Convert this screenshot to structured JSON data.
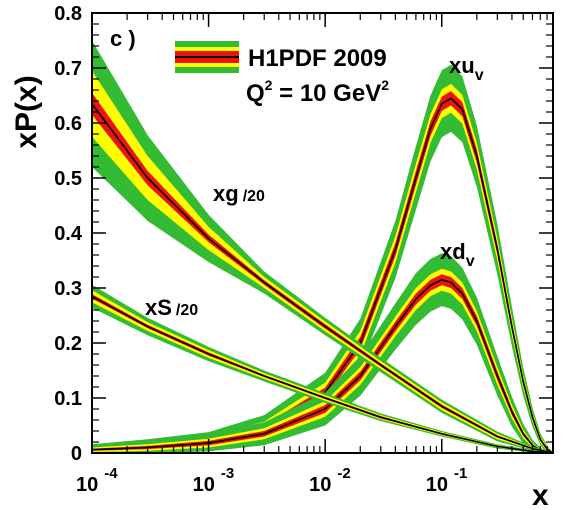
{
  "chart_data": {
    "type": "line",
    "panel_label": "c )",
    "legend": {
      "title": "H1PDF 2009",
      "scale_prefix": "Q",
      "scale_exp": "2",
      "scale_rest": " = 10 GeV",
      "scale_unit_exp": "2",
      "placement": "top-center"
    },
    "xlabel": "x",
    "ylabel": "xP(x)",
    "x_scale": "log",
    "xlim": [
      0.0001,
      0.9
    ],
    "ylim": [
      0,
      0.8
    ],
    "y_ticks": [
      "0",
      "0.1",
      "0.2",
      "0.3",
      "0.4",
      "0.5",
      "0.6",
      "0.7",
      "0.8"
    ],
    "x_ticks": [
      {
        "base": "10",
        "exp": "-4"
      },
      {
        "base": "10",
        "exp": "-3"
      },
      {
        "base": "10",
        "exp": "-2"
      },
      {
        "base": "10",
        "exp": "-1"
      }
    ],
    "band_colors": {
      "outer": "#33bb33",
      "middle": "#ffff00",
      "inner": "#ee1111",
      "central": "#000000"
    },
    "series": [
      {
        "id": "xuv",
        "label_main": "xu",
        "label_sub": "v",
        "x": [
          0.0001,
          0.0003,
          0.001,
          0.003,
          0.01,
          0.02,
          0.04,
          0.06,
          0.08,
          0.1,
          0.12,
          0.15,
          0.2,
          0.3,
          0.4,
          0.5,
          0.6,
          0.7,
          0.8,
          0.9
        ],
        "y": [
          0.008,
          0.013,
          0.022,
          0.045,
          0.11,
          0.2,
          0.37,
          0.5,
          0.59,
          0.635,
          0.645,
          0.625,
          0.54,
          0.37,
          0.23,
          0.13,
          0.065,
          0.025,
          0.007,
          0.0
        ],
        "outer": [
          0.004,
          0.006,
          0.008,
          0.012,
          0.018,
          0.022,
          0.028,
          0.032,
          0.034,
          0.035,
          0.035,
          0.034,
          0.032,
          0.026,
          0.02,
          0.014,
          0.009,
          0.005,
          0.003,
          0.0
        ],
        "middle": [
          0.002,
          0.003,
          0.004,
          0.006,
          0.009,
          0.011,
          0.012,
          0.013,
          0.013,
          0.013,
          0.013,
          0.013,
          0.012,
          0.01,
          0.008,
          0.006,
          0.004,
          0.003,
          0.002,
          0.0
        ],
        "inner": [
          0.002,
          0.003,
          0.004,
          0.006,
          0.009,
          0.011,
          0.012,
          0.013,
          0.013,
          0.013,
          0.013,
          0.013,
          0.012,
          0.01,
          0.008,
          0.006,
          0.004,
          0.003,
          0.002,
          0.0
        ]
      },
      {
        "id": "xdv",
        "label_main": "xd",
        "label_sub": "v",
        "x": [
          0.0001,
          0.0003,
          0.001,
          0.003,
          0.01,
          0.02,
          0.04,
          0.06,
          0.08,
          0.1,
          0.12,
          0.15,
          0.2,
          0.3,
          0.4,
          0.5,
          0.6,
          0.7,
          0.8,
          0.9
        ],
        "y": [
          0.006,
          0.01,
          0.018,
          0.035,
          0.08,
          0.14,
          0.23,
          0.28,
          0.305,
          0.315,
          0.31,
          0.29,
          0.24,
          0.14,
          0.075,
          0.035,
          0.014,
          0.005,
          0.001,
          0.0
        ],
        "outer": [
          0.004,
          0.005,
          0.007,
          0.011,
          0.016,
          0.02,
          0.024,
          0.027,
          0.028,
          0.028,
          0.028,
          0.027,
          0.025,
          0.02,
          0.015,
          0.01,
          0.006,
          0.003,
          0.001,
          0.0
        ],
        "middle": [
          0.002,
          0.003,
          0.004,
          0.005,
          0.007,
          0.008,
          0.009,
          0.01,
          0.01,
          0.01,
          0.01,
          0.01,
          0.009,
          0.008,
          0.006,
          0.004,
          0.002,
          0.001,
          0.0005,
          0.0
        ],
        "inner": [
          0.002,
          0.003,
          0.004,
          0.005,
          0.007,
          0.008,
          0.009,
          0.01,
          0.01,
          0.01,
          0.01,
          0.01,
          0.009,
          0.008,
          0.006,
          0.004,
          0.002,
          0.001,
          0.0005,
          0.0
        ]
      },
      {
        "id": "xg20",
        "label_main": "xg",
        "label_sub": "/20",
        "x": [
          0.0001,
          0.0003,
          0.001,
          0.003,
          0.01,
          0.03,
          0.1,
          0.3,
          0.6,
          0.9
        ],
        "y": [
          0.635,
          0.5,
          0.39,
          0.31,
          0.23,
          0.16,
          0.085,
          0.03,
          0.008,
          0.0
        ],
        "outer": [
          0.055,
          0.038,
          0.022,
          0.01,
          0.007,
          0.006,
          0.005,
          0.004,
          0.002,
          0.0
        ],
        "middle": [
          0.04,
          0.027,
          0.014,
          0.006,
          0.005,
          0.004,
          0.004,
          0.003,
          0.001,
          0.0
        ],
        "inner": [
          0.02,
          0.013,
          0.007,
          0.004,
          0.004,
          0.003,
          0.003,
          0.002,
          0.001,
          0.0
        ]
      },
      {
        "id": "xS20",
        "label_main": "xS",
        "label_sub": "/20",
        "x": [
          0.0001,
          0.0003,
          0.001,
          0.003,
          0.01,
          0.03,
          0.1,
          0.3,
          0.6,
          0.9
        ],
        "y": [
          0.285,
          0.23,
          0.18,
          0.14,
          0.1,
          0.065,
          0.035,
          0.012,
          0.003,
          0.0
        ],
        "outer": [
          0.01,
          0.008,
          0.006,
          0.005,
          0.004,
          0.003,
          0.002,
          0.002,
          0.001,
          0.0
        ],
        "middle": [
          0.007,
          0.005,
          0.004,
          0.003,
          0.003,
          0.002,
          0.002,
          0.001,
          0.001,
          0.0
        ],
        "inner": [
          0.004,
          0.003,
          0.003,
          0.002,
          0.002,
          0.002,
          0.001,
          0.001,
          0.0,
          0.0
        ]
      }
    ]
  }
}
